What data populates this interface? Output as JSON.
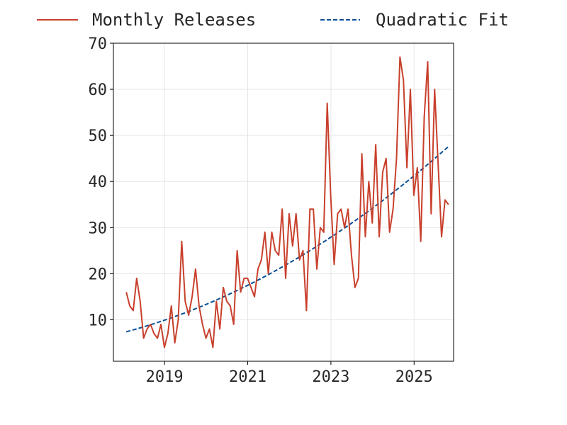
{
  "chart_data": {
    "type": "line",
    "title": "",
    "xlabel": "",
    "ylabel": "",
    "x_start": 2018.08,
    "x_step": 0.0833,
    "xlim": [
      2017.77,
      2025.95
    ],
    "ylim": [
      1,
      70
    ],
    "xticks": [
      2019,
      2021,
      2023,
      2025
    ],
    "xtick_labels": [
      "2019",
      "2021",
      "2023",
      "2025"
    ],
    "yticks": [
      10,
      20,
      30,
      40,
      50,
      60,
      70
    ],
    "ytick_labels": [
      "10",
      "20",
      "30",
      "40",
      "50",
      "60",
      "70"
    ],
    "grid": true,
    "legend_position": "top",
    "series": [
      {
        "name": "Monthly Releases",
        "color": "#c8402c",
        "style": "solid",
        "values": [
          16,
          13,
          12,
          19,
          14,
          6,
          8,
          9,
          7,
          6,
          9,
          4,
          7,
          13,
          5,
          10,
          27,
          14,
          11,
          15,
          21,
          13,
          9,
          6,
          8,
          4,
          14,
          8,
          17,
          14,
          13,
          9,
          25,
          16,
          19,
          19,
          17,
          15,
          21,
          23,
          29,
          20,
          29,
          25,
          24,
          34,
          19,
          33,
          26,
          33,
          23,
          25,
          12,
          34,
          34,
          21,
          30,
          29,
          57,
          37,
          22,
          33,
          34,
          30,
          34,
          24,
          17,
          19,
          46,
          28,
          40,
          31,
          48,
          28,
          42,
          45,
          29,
          34,
          45,
          67,
          62,
          43,
          60,
          37,
          43,
          27,
          54,
          66,
          33,
          60,
          44,
          28,
          36,
          35
        ]
      },
      {
        "name": "Quadratic Fit",
        "color": "#0a4f94",
        "style": "dashed",
        "fit": {
          "a": 7.4,
          "b": 9.05,
          "c": 0.0917,
          "x0": 2018.08
        }
      }
    ]
  }
}
